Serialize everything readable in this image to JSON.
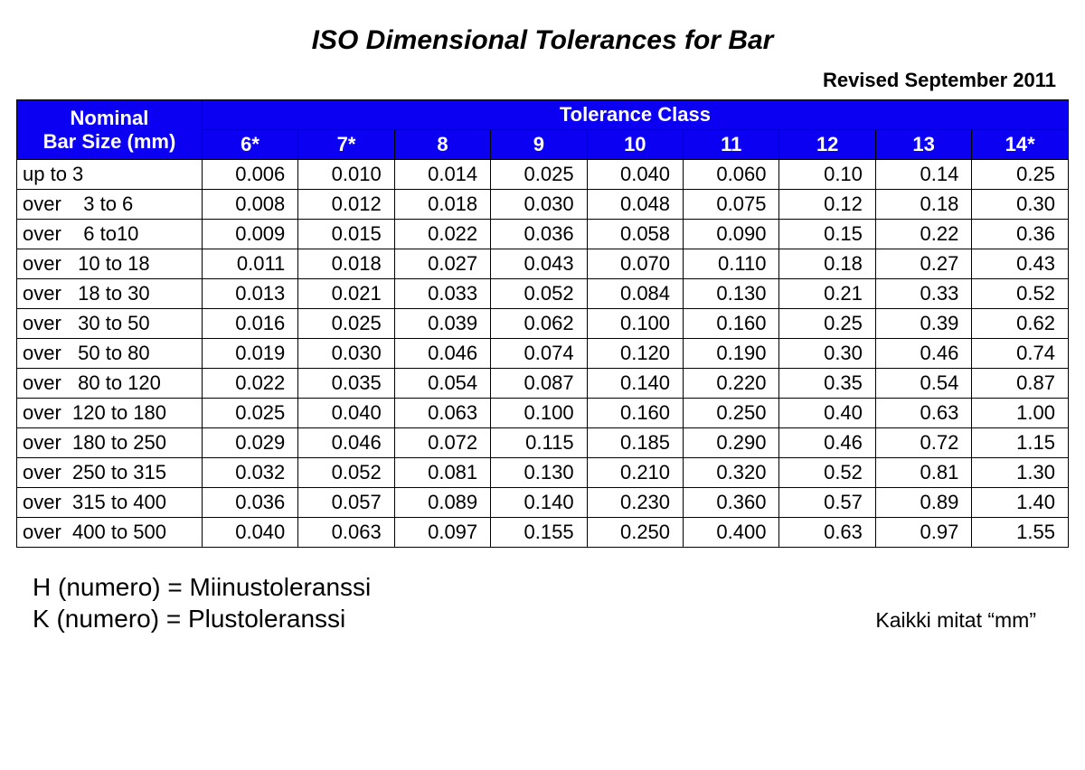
{
  "title": "ISO Dimensional Tolerances for Bar",
  "revised": "Revised September 2011",
  "table": {
    "header": {
      "sizeLabel": "Nominal\nBar Size (mm)",
      "classLabel": "Tolerance Class",
      "classes": [
        "6*",
        "7*",
        "8",
        "9",
        "10",
        "11",
        "12",
        "13",
        "14*"
      ]
    },
    "rows": [
      {
        "size": "up to 3",
        "v": [
          "0.006",
          "0.010",
          "0.014",
          "0.025",
          "0.040",
          "0.060",
          "0.10",
          "0.14",
          "0.25"
        ]
      },
      {
        "size": "over    3 to 6",
        "v": [
          "0.008",
          "0.012",
          "0.018",
          "0.030",
          "0.048",
          "0.075",
          "0.12",
          "0.18",
          "0.30"
        ]
      },
      {
        "size": "over    6 to10",
        "v": [
          "0.009",
          "0.015",
          "0.022",
          "0.036",
          "0.058",
          "0.090",
          "0.15",
          "0.22",
          "0.36"
        ]
      },
      {
        "size": "over   10 to 18",
        "v": [
          "0.011",
          "0.018",
          "0.027",
          "0.043",
          "0.070",
          "0.110",
          "0.18",
          "0.27",
          "0.43"
        ]
      },
      {
        "size": "over   18 to 30",
        "v": [
          "0.013",
          "0.021",
          "0.033",
          "0.052",
          "0.084",
          "0.130",
          "0.21",
          "0.33",
          "0.52"
        ]
      },
      {
        "size": "over   30 to 50",
        "v": [
          "0.016",
          "0.025",
          "0.039",
          "0.062",
          "0.100",
          "0.160",
          "0.25",
          "0.39",
          "0.62"
        ]
      },
      {
        "size": "over   50 to 80",
        "v": [
          "0.019",
          "0.030",
          "0.046",
          "0.074",
          "0.120",
          "0.190",
          "0.30",
          "0.46",
          "0.74"
        ]
      },
      {
        "size": "over   80 to 120",
        "v": [
          "0.022",
          "0.035",
          "0.054",
          "0.087",
          "0.140",
          "0.220",
          "0.35",
          "0.54",
          "0.87"
        ]
      },
      {
        "size": "over  120 to 180",
        "v": [
          "0.025",
          "0.040",
          "0.063",
          "0.100",
          "0.160",
          "0.250",
          "0.40",
          "0.63",
          "1.00"
        ]
      },
      {
        "size": "over  180 to 250",
        "v": [
          "0.029",
          "0.046",
          "0.072",
          "0.115",
          "0.185",
          "0.290",
          "0.46",
          "0.72",
          "1.15"
        ]
      },
      {
        "size": "over  250 to 315",
        "v": [
          "0.032",
          "0.052",
          "0.081",
          "0.130",
          "0.210",
          "0.320",
          "0.52",
          "0.81",
          "1.30"
        ]
      },
      {
        "size": "over  315 to 400",
        "v": [
          "0.036",
          "0.057",
          "0.089",
          "0.140",
          "0.230",
          "0.360",
          "0.57",
          "0.89",
          "1.40"
        ]
      },
      {
        "size": "over  400 to 500",
        "v": [
          "0.040",
          "0.063",
          "0.097",
          "0.155",
          "0.250",
          "0.400",
          "0.63",
          "0.97",
          "1.55"
        ]
      }
    ]
  },
  "footer": {
    "line1": "H (numero) = Miinustoleranssi",
    "line2": "K (numero) = Plustoleranssi",
    "right": "Kaikki mitat “mm”"
  },
  "style": {
    "headerBg": "#0b00f2",
    "headerFg": "#ffffff",
    "border": "#000000",
    "bg": "#ffffff"
  }
}
